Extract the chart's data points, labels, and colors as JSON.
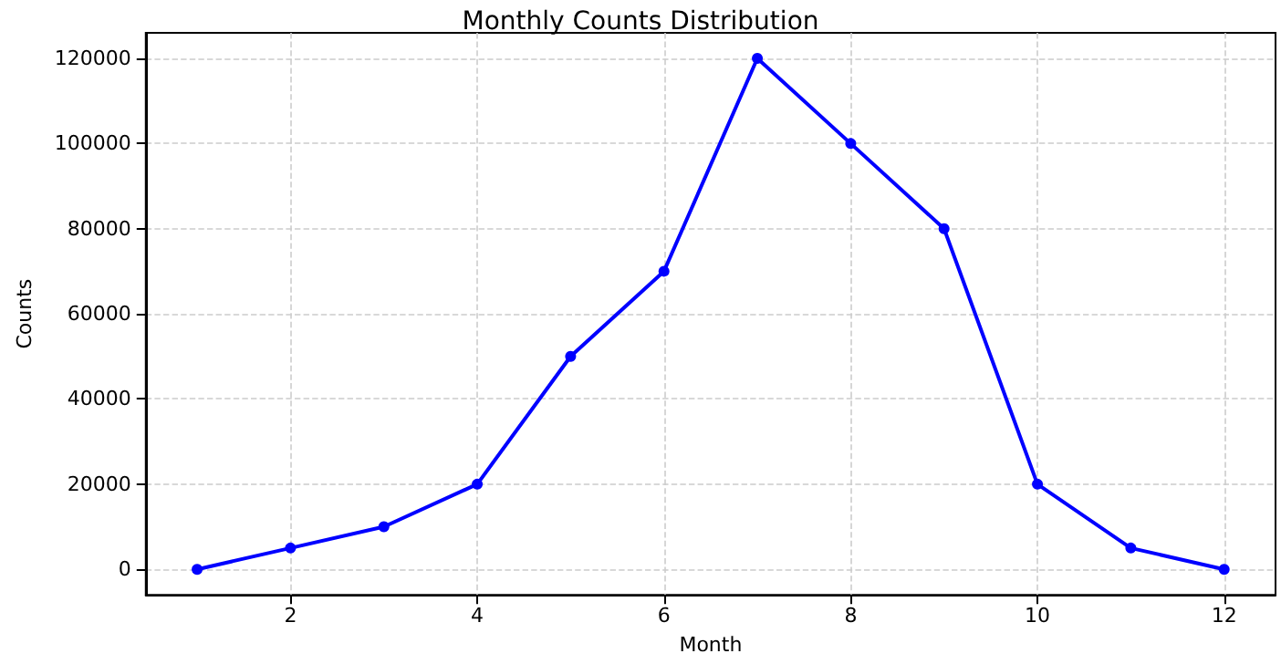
{
  "chart_data": {
    "type": "line",
    "title": "Monthly Counts Distribution",
    "xlabel": "Month",
    "ylabel": "Counts",
    "x": [
      1,
      2,
      3,
      4,
      5,
      6,
      7,
      8,
      9,
      10,
      11,
      12
    ],
    "series": [
      {
        "color": "#0000ff",
        "values": [
          0,
          5000,
          10000,
          20000,
          50000,
          70000,
          120000,
          100000,
          80000,
          20000,
          5000,
          0
        ]
      }
    ],
    "xlim": [
      0.45,
      12.55
    ],
    "xticks": [
      2,
      4,
      6,
      8,
      10,
      12
    ],
    "ylim": [
      -6000,
      126000
    ],
    "yticks": [
      0,
      20000,
      40000,
      60000,
      80000,
      100000,
      120000
    ],
    "grid": true,
    "marker": "circle",
    "line_style": "solid"
  }
}
